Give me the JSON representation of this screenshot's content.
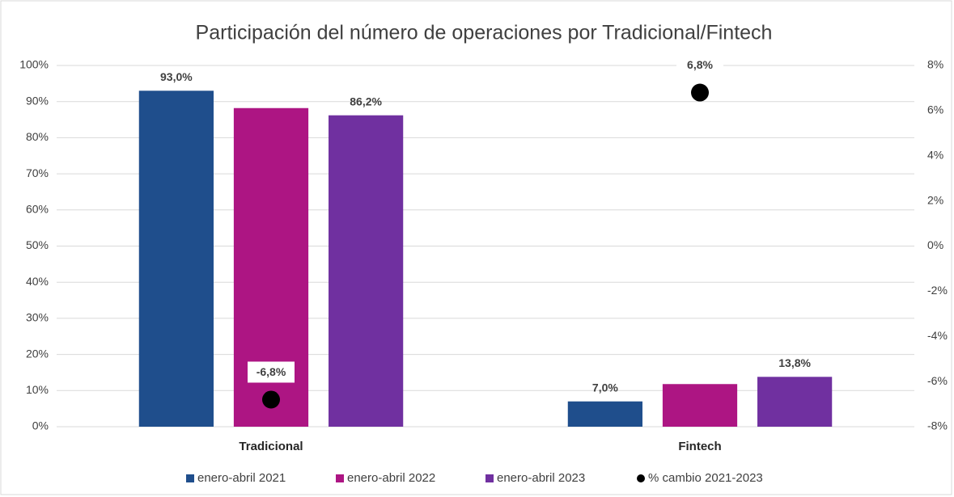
{
  "chart_data": {
    "type": "bar",
    "title": "Participación del número de operaciones por Tradicional/Fintech",
    "categories": [
      "Tradicional",
      "Fintech"
    ],
    "series": [
      {
        "name": "enero-abril 2021",
        "color": "#1f4e8c",
        "values": [
          93.0,
          7.0
        ],
        "value_labels": [
          "93,0%",
          "7,0%"
        ]
      },
      {
        "name": "enero-abril 2022",
        "color": "#ad1583",
        "values": [
          88.2,
          11.8
        ]
      },
      {
        "name": "enero-abril 2023",
        "color": "#7030a0",
        "values": [
          86.2,
          13.8
        ],
        "value_labels": [
          "86,2%",
          "13,8%"
        ]
      },
      {
        "name": "% cambio 2021-2023",
        "color": "#000000",
        "type": "scatter",
        "axis": "y2",
        "values": [
          -6.8,
          6.8
        ],
        "value_labels": [
          "-6,8%",
          "6,8%"
        ]
      }
    ],
    "ylim": [
      0,
      100
    ],
    "yticks": [
      {
        "value": 0,
        "label": "0%"
      },
      {
        "value": 10,
        "label": "10%"
      },
      {
        "value": 20,
        "label": "20%"
      },
      {
        "value": 30,
        "label": "30%"
      },
      {
        "value": 40,
        "label": "40%"
      },
      {
        "value": 50,
        "label": "50%"
      },
      {
        "value": 60,
        "label": "60%"
      },
      {
        "value": 70,
        "label": "70%"
      },
      {
        "value": 80,
        "label": "80%"
      },
      {
        "value": 90,
        "label": "90%"
      },
      {
        "value": 100,
        "label": "100%"
      }
    ],
    "y2lim": [
      -8,
      8
    ],
    "y2ticks": [
      {
        "value": -8,
        "label": "-8%"
      },
      {
        "value": -6,
        "label": "-6%"
      },
      {
        "value": -4,
        "label": "-4%"
      },
      {
        "value": -2,
        "label": "-2%"
      },
      {
        "value": 0,
        "label": "0%"
      },
      {
        "value": 2,
        "label": "2%"
      },
      {
        "value": 4,
        "label": "4%"
      },
      {
        "value": 6,
        "label": "6%"
      },
      {
        "value": 8,
        "label": "8%"
      }
    ],
    "grid": true,
    "legend": "bottom"
  }
}
